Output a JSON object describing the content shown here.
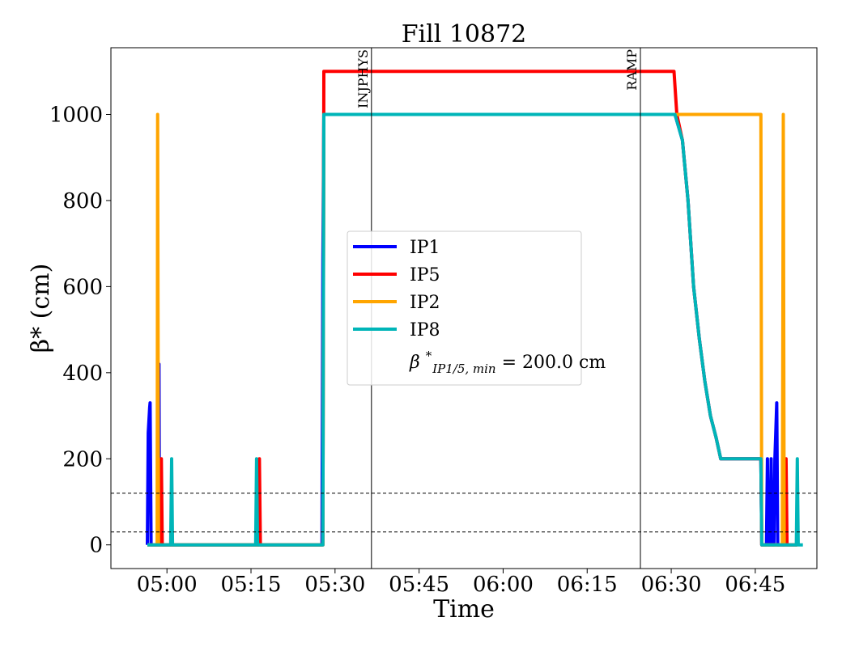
{
  "chart_data": {
    "type": "line",
    "title": "Fill 10872",
    "xlabel": "Time",
    "ylabel": "β* (cm)",
    "x_unit": "minutes",
    "xlim": [
      "04:50",
      "06:56"
    ],
    "ylim": [
      -55,
      1155
    ],
    "xticks": [
      "05:00",
      "05:15",
      "05:30",
      "05:45",
      "06:00",
      "06:15",
      "06:30",
      "06:45"
    ],
    "yticks": [
      0,
      200,
      400,
      600,
      800,
      1000
    ],
    "grid": false,
    "legend_position": "center",
    "series": [
      {
        "name": "IP1",
        "color": "#0000ff",
        "points": [
          [
            "04:56:30",
            0
          ],
          [
            "04:56:40",
            260
          ],
          [
            "04:56:55",
            320
          ],
          [
            "04:57:00",
            330
          ],
          [
            "04:57:10",
            0
          ],
          [
            "04:57:30",
            0
          ],
          [
            "04:58:30",
            0
          ],
          [
            "04:58:35",
            420
          ],
          [
            "04:58:40",
            0
          ],
          [
            "05:16:00",
            0
          ],
          [
            "05:27:40",
            0
          ],
          [
            "05:27:50",
            660
          ],
          [
            "05:28:00",
            1000
          ],
          [
            "06:30:40",
            1000
          ],
          [
            "06:32:00",
            940
          ],
          [
            "06:33:00",
            800
          ],
          [
            "06:34:00",
            600
          ],
          [
            "06:35:00",
            480
          ],
          [
            "06:36:00",
            380
          ],
          [
            "06:37:00",
            300
          ],
          [
            "06:38:00",
            250
          ],
          [
            "06:38:50",
            200
          ],
          [
            "06:46:00",
            200
          ],
          [
            "06:46:10",
            0
          ],
          [
            "06:47:00",
            0
          ],
          [
            "06:47:10",
            200
          ],
          [
            "06:47:20",
            0
          ],
          [
            "06:47:40",
            0
          ],
          [
            "06:47:50",
            200
          ],
          [
            "06:48:00",
            0
          ],
          [
            "06:48:20",
            0
          ],
          [
            "06:48:30",
            200
          ],
          [
            "06:48:40",
            260
          ],
          [
            "06:48:50",
            330
          ],
          [
            "06:49:00",
            0
          ],
          [
            "06:52:30",
            0
          ]
        ]
      },
      {
        "name": "IP5",
        "color": "#ff0000",
        "points": [
          [
            "04:56:30",
            0
          ],
          [
            "04:58:50",
            0
          ],
          [
            "04:59:00",
            200
          ],
          [
            "04:59:10",
            0
          ],
          [
            "05:16:20",
            0
          ],
          [
            "05:16:30",
            200
          ],
          [
            "05:16:40",
            0
          ],
          [
            "05:27:50",
            0
          ],
          [
            "05:28:00",
            1100
          ],
          [
            "06:30:30",
            1100
          ],
          [
            "06:31:00",
            1000
          ],
          [
            "06:32:00",
            940
          ],
          [
            "06:33:00",
            800
          ],
          [
            "06:34:00",
            600
          ],
          [
            "06:35:00",
            480
          ],
          [
            "06:36:00",
            380
          ],
          [
            "06:37:00",
            300
          ],
          [
            "06:38:00",
            250
          ],
          [
            "06:38:50",
            200
          ],
          [
            "06:46:00",
            200
          ],
          [
            "06:46:10",
            0
          ],
          [
            "06:50:20",
            0
          ],
          [
            "06:50:30",
            200
          ],
          [
            "06:50:40",
            0
          ],
          [
            "06:52:30",
            0
          ]
        ]
      },
      {
        "name": "IP2",
        "color": "#ffa500",
        "points": [
          [
            "04:56:30",
            0
          ],
          [
            "04:58:15",
            0
          ],
          [
            "04:58:20",
            1000
          ],
          [
            "04:58:30",
            0
          ],
          [
            "05:27:50",
            0
          ],
          [
            "05:28:00",
            1000
          ],
          [
            "06:46:00",
            1000
          ],
          [
            "06:46:10",
            0
          ],
          [
            "06:49:50",
            0
          ],
          [
            "06:50:00",
            1000
          ],
          [
            "06:50:10",
            0
          ],
          [
            "06:52:30",
            0
          ]
        ]
      },
      {
        "name": "IP8",
        "color": "#00b5b8",
        "points": [
          [
            "04:56:30",
            0
          ],
          [
            "05:00:40",
            0
          ],
          [
            "05:00:50",
            200
          ],
          [
            "05:01:00",
            0
          ],
          [
            "05:15:50",
            0
          ],
          [
            "05:16:00",
            200
          ],
          [
            "05:16:10",
            0
          ],
          [
            "05:27:50",
            0
          ],
          [
            "05:28:00",
            1000
          ],
          [
            "06:30:40",
            1000
          ],
          [
            "06:32:00",
            940
          ],
          [
            "06:33:00",
            800
          ],
          [
            "06:34:00",
            600
          ],
          [
            "06:35:00",
            480
          ],
          [
            "06:36:00",
            380
          ],
          [
            "06:37:00",
            300
          ],
          [
            "06:38:00",
            250
          ],
          [
            "06:38:50",
            200
          ],
          [
            "06:46:00",
            200
          ],
          [
            "06:46:10",
            0
          ],
          [
            "06:52:20",
            0
          ],
          [
            "06:52:30",
            200
          ],
          [
            "06:52:40",
            0
          ],
          [
            "06:53:30",
            0
          ]
        ]
      }
    ],
    "legend_extra": {
      "label_main": "β",
      "label_sup": "*",
      "label_sub": "IP1/5, min",
      "label_rest": " = 200.0 cm"
    },
    "vertical_markers": [
      {
        "label": "INJPHYS",
        "x": "05:36:30"
      },
      {
        "label": "RAMP",
        "x": "06:24:30"
      }
    ],
    "horizontal_reference_lines": [
      30,
      120
    ]
  }
}
